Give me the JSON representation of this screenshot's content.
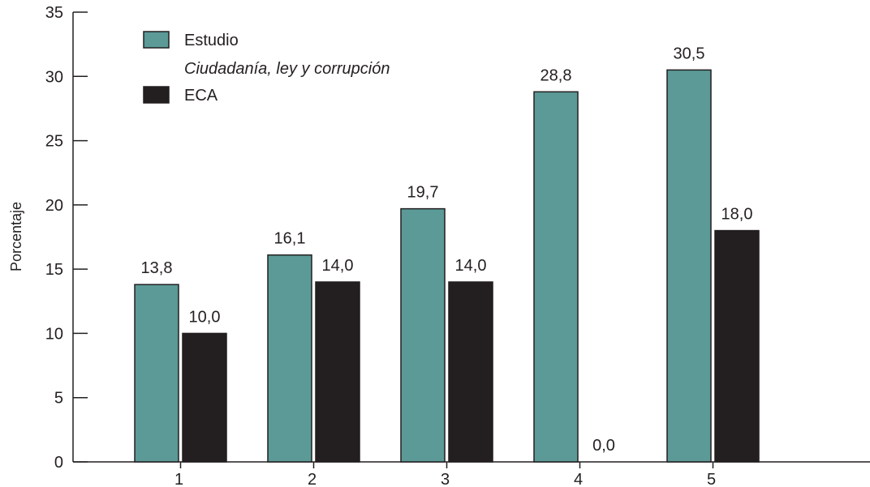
{
  "chart_data": {
    "type": "bar",
    "ylabel": "Porcentaje",
    "xlabel": "",
    "ylim": [
      0,
      35
    ],
    "yticks": [
      0,
      5,
      10,
      15,
      20,
      25,
      30,
      35
    ],
    "categories": [
      "1",
      "2",
      "3",
      "4",
      "5"
    ],
    "legend_position": "top-left",
    "series": [
      {
        "name": "Estudio",
        "subtitle": "Ciudadanía, ley y corrupción",
        "color": "#5b9a97",
        "values": [
          13.8,
          16.1,
          19.7,
          28.8,
          30.5
        ],
        "labels": [
          "13,8",
          "16,1",
          "19,7",
          "28,8",
          "30,5"
        ]
      },
      {
        "name": "ECA",
        "color": "#231f20",
        "values": [
          10.0,
          14.0,
          14.0,
          0.0,
          18.0
        ],
        "labels": [
          "10,0",
          "14,0",
          "14,0",
          "0,0",
          "18,0"
        ]
      }
    ]
  }
}
